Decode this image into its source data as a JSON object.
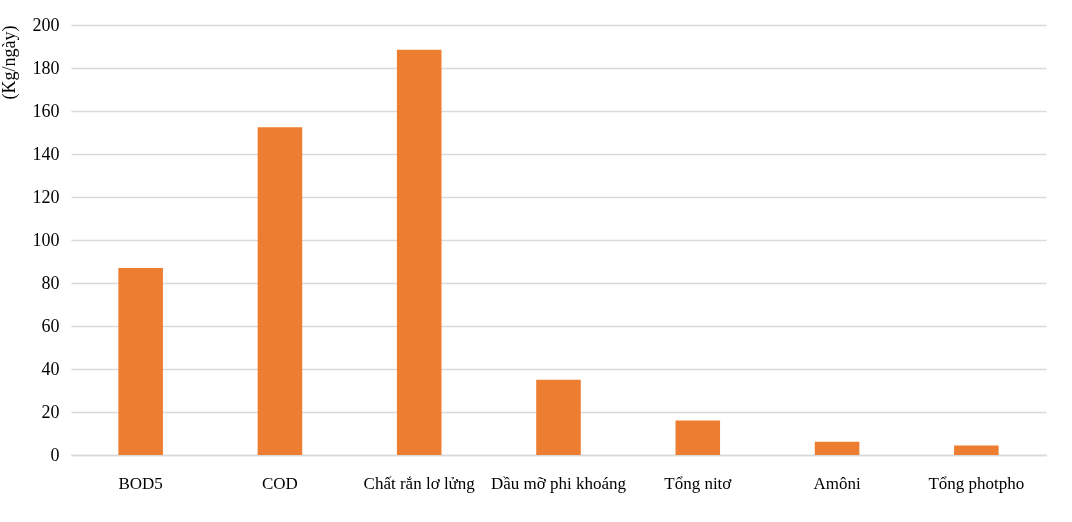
{
  "chart_data": {
    "type": "bar",
    "ylabel": "(Kg/ngày)",
    "categories": [
      "BOD5",
      "COD",
      "Chất rắn lơ lửng",
      "Dầu mỡ phi khoáng",
      "Tổng nitơ",
      "Amôni",
      "Tổng photpho"
    ],
    "values": [
      87,
      152.5,
      188.5,
      35,
      16,
      6.2,
      4.4
    ],
    "color": "#ed7d31",
    "ylim": [
      0,
      200
    ],
    "yticks": [
      0,
      20,
      40,
      60,
      80,
      100,
      120,
      140,
      160,
      180,
      200
    ],
    "grid": "y"
  }
}
